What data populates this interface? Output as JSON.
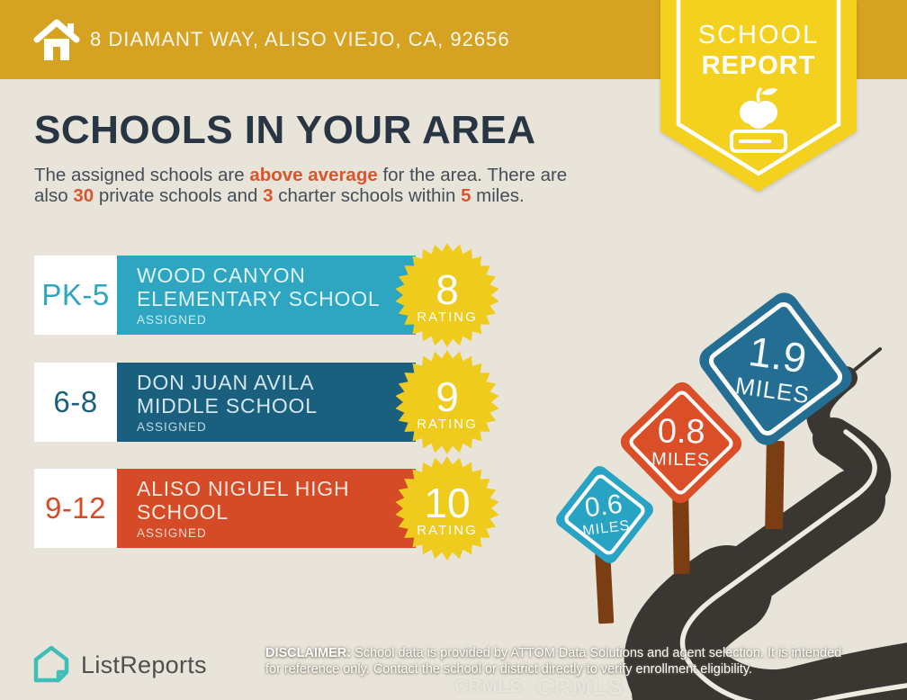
{
  "header": {
    "address": "8 DIAMANT WAY, ALISO VIEJO, CA, 92656"
  },
  "ribbon": {
    "line1": "SCHOOL",
    "line2": "REPORT"
  },
  "title": "SCHOOLS IN YOUR AREA",
  "intro": {
    "line1": {
      "s1": "The assigned schools are ",
      "h1": "above average",
      "s2": " for the area. There are"
    },
    "line2": {
      "s1": "also ",
      "h1": "30",
      "s2": " private schools and ",
      "h2": "3",
      "s3": " charter schools within ",
      "h3": "5",
      "s4": " miles."
    }
  },
  "schools": [
    {
      "grades": "PK-5",
      "name_line1": "WOOD CANYON",
      "name_line2": "ELEMENTARY SCHOOL",
      "assigned_label": "ASSIGNED",
      "rating": "8",
      "rating_label": "RATING",
      "color": "#2EA6C1",
      "text_color": "#DFF3F6"
    },
    {
      "grades": "6-8",
      "name_line1": "DON JUAN AVILA",
      "name_line2": "MIDDLE SCHOOL",
      "assigned_label": "ASSIGNED",
      "rating": "9",
      "rating_label": "RATING",
      "color": "#1A5F7E",
      "text_color": "#D3E7F0"
    },
    {
      "grades": "9-12",
      "name_line1": "ALISO NIGUEL HIGH",
      "name_line2": "SCHOOL",
      "assigned_label": "ASSIGNED",
      "rating": "10",
      "rating_label": "RATING",
      "color": "#D54B27",
      "text_color": "#F8E7DB"
    }
  ],
  "signs": [
    {
      "value": "0.6",
      "unit": "MILES",
      "color": "#28A3C4"
    },
    {
      "value": "0.8",
      "unit": "MILES",
      "color": "#DA4E28"
    },
    {
      "value": "1.9",
      "unit": "MILES",
      "color": "#256E93"
    }
  ],
  "footer": {
    "brand": "ListReports",
    "disclaimer_label": "DISCLAIMER:",
    "disclaimer_line1_rest": " School data is provided by ATTOM Data Solutions and agent selection. It is intended",
    "disclaimer_line2": "for reference only. Contact the school or district directly to verify enrollment eligibility.",
    "watermark": "CRMLS"
  },
  "colors": {
    "header_gold": "#D5A321",
    "ribbon_yellow": "#F4D11F",
    "background": "#E9E4D9",
    "title_navy": "#273642",
    "body_text": "#434E59",
    "accent_orange": "#D9552C",
    "badge_yellow": "#EFCB1D",
    "road": "#3A3733",
    "road_line": "#EFEBE0",
    "post_brown": "#7B3E12",
    "logo_teal": "#3FBDB7",
    "logo_text": "#4F4F4F"
  }
}
